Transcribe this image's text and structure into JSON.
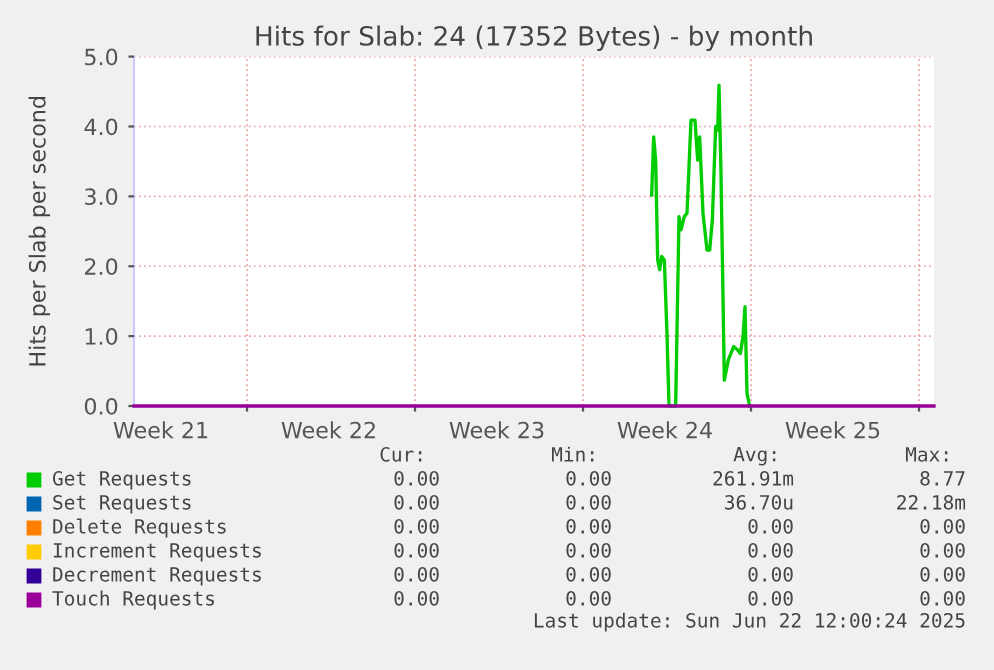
{
  "chart_data": {
    "type": "line",
    "title": "Hits for Slab: 24 (17352 Bytes) - by month",
    "ylabel": "Hits per Slab per second",
    "xlim": [
      "2025-05-21T07:00",
      "2025-06-23T15:00"
    ],
    "ylim": [
      0,
      5
    ],
    "xticks": [
      {
        "value": "2025-05-22T10:00",
        "label": "Week 21"
      },
      {
        "value": "2025-05-29T10:00",
        "label": "Week 22"
      },
      {
        "value": "2025-06-05T10:00",
        "label": "Week 23"
      },
      {
        "value": "2025-06-12T10:00",
        "label": "Week 24"
      },
      {
        "value": "2025-06-19T10:00",
        "label": "Week 25"
      },
      {
        "value": "2025-05-26",
        "label": null
      },
      {
        "value": "2025-06-02",
        "label": null
      },
      {
        "value": "2025-06-09",
        "label": null
      },
      {
        "value": "2025-06-16",
        "label": null
      },
      {
        "value": "2025-06-23",
        "label": null
      }
    ],
    "yticks": [
      {
        "value": 0,
        "label": "0.0"
      },
      {
        "value": 1,
        "label": "1.0"
      },
      {
        "value": 2,
        "label": "2.0"
      },
      {
        "value": 3,
        "label": "3.0"
      },
      {
        "value": 4,
        "label": "4.0"
      },
      {
        "value": 5,
        "label": "5.0"
      }
    ],
    "grid": true,
    "legend": "bottom",
    "series": [
      {
        "name": "Get Requests",
        "color": "#00cc00",
        "x": [
          "2025-06-11T20:40",
          "2025-06-11T22:40",
          "2025-06-12T00:40",
          "2025-06-12T02:40",
          "2025-06-12T04:40",
          "2025-06-12T06:40",
          "2025-06-12T09:20",
          "2025-06-12T12:00",
          "2025-06-12T14:00",
          "2025-06-12T20:40",
          "2025-06-13T00:00",
          "2025-06-13T02:00",
          "2025-06-13T05:20",
          "2025-06-13T08:00",
          "2025-06-13T12:00",
          "2025-06-13T16:00",
          "2025-06-13T18:40",
          "2025-06-13T20:40",
          "2025-06-14T00:00",
          "2025-06-14T04:00",
          "2025-06-14T06:40",
          "2025-06-14T09:20",
          "2025-06-14T12:40",
          "2025-06-14T14:40",
          "2025-06-14T16:00",
          "2025-06-14T18:00",
          "2025-06-14T21:20",
          "2025-06-15T01:20",
          "2025-06-15T06:40",
          "2025-06-15T10:40",
          "2025-06-15T13:20",
          "2025-06-15T16:00",
          "2025-06-15T18:00",
          "2025-06-15T20:00",
          "2025-06-15T22:40"
        ],
        "values": [
          3.02,
          3.85,
          3.52,
          2.09,
          1.95,
          2.14,
          2.09,
          1.04,
          0,
          0,
          2.71,
          2.52,
          2.71,
          2.76,
          4.09,
          4.09,
          3.52,
          3.85,
          2.76,
          2.23,
          2.23,
          2.66,
          4.0,
          3.95,
          4.59,
          3.33,
          0.37,
          0.66,
          0.85,
          0.8,
          0.75,
          0.99,
          1.42,
          0.18,
          0
        ]
      },
      {
        "name": "Set Requests",
        "color": "#0066b3"
      },
      {
        "name": "Delete Requests",
        "color": "#ff8000"
      },
      {
        "name": "Increment Requests",
        "color": "#ffcc00"
      },
      {
        "name": "Decrement Requests",
        "color": "#330099"
      },
      {
        "name": "Touch Requests",
        "color": "#990099",
        "x": [
          "2025-05-21T07:00",
          "2025-06-23T15:00"
        ],
        "values": [
          0,
          0
        ]
      }
    ],
    "annotations": [
      "Cur:",
      "Min:",
      "Avg:",
      "Max:",
      "0.00",
      "0.00",
      "261.91m",
      "8.77",
      "0.00",
      "0.00",
      "36.70u",
      "22.18m",
      "0.00",
      "0.00",
      "0.00",
      "0.00",
      "0.00",
      "0.00",
      "0.00",
      "0.00",
      "0.00",
      "0.00",
      "0.00",
      "0.00",
      "0.00",
      "0.00",
      "0.00",
      "0.00",
      "Last update: Sun Jun 22 12:00:24 2025"
    ]
  }
}
